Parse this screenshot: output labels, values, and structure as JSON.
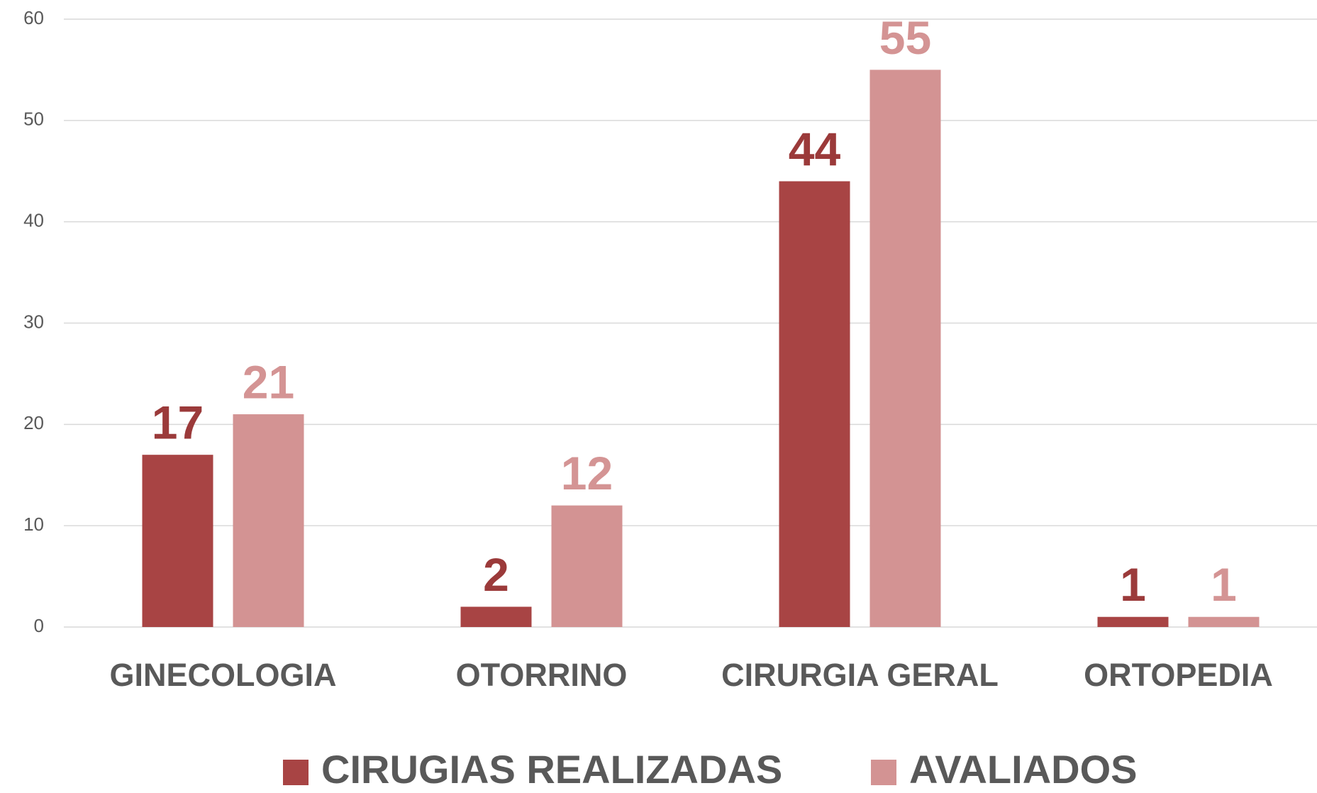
{
  "chart_data": {
    "type": "bar",
    "categories": [
      "GINECOLOGIA",
      "OTORRINO",
      "CIRURGIA GERAL",
      "ORTOPEDIA"
    ],
    "series": [
      {
        "name": "CIRUGIAS REALIZADAS",
        "color": "#a84444",
        "values": [
          17,
          2,
          44,
          1
        ]
      },
      {
        "name": "AVALIADOS",
        "color": "#d39393",
        "values": [
          21,
          12,
          55,
          1
        ]
      }
    ],
    "ylim": [
      0,
      60
    ],
    "yticks": [
      0,
      10,
      20,
      30,
      40,
      50,
      60
    ],
    "grid": true,
    "legend": "bottom"
  }
}
